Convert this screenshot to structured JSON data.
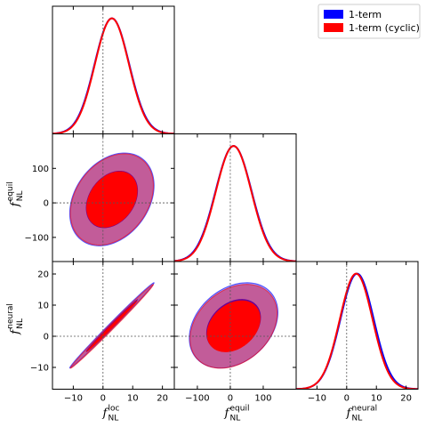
{
  "chart_data": {
    "type": "triangle",
    "parameters": [
      {
        "id": "loc",
        "symbol": "f",
        "sub": "NL",
        "sup": "loc",
        "fiducial": 0,
        "range": [
          -17,
          24
        ],
        "ticks": [
          -10,
          0,
          10,
          20
        ]
      },
      {
        "id": "equil",
        "symbol": "f",
        "sub": "NL",
        "sup": "equil",
        "fiducial": 0,
        "range": [
          -170,
          200
        ],
        "ticks": [
          -100,
          0,
          100
        ]
      },
      {
        "id": "neural",
        "symbol": "f",
        "sub": "NL",
        "sup": "neural",
        "fiducial": 0,
        "range": [
          -17,
          24
        ],
        "ticks": [
          -10,
          0,
          10,
          20
        ]
      }
    ],
    "series": [
      {
        "name": "1-term",
        "color": "#0000ff",
        "marginals": [
          {
            "mean": 3,
            "sigma": 5.8
          },
          {
            "mean": 10,
            "sigma": 55
          },
          {
            "mean": 3.5,
            "sigma": 5.6
          }
        ],
        "contours": [
          {
            "x": "loc",
            "y": "equil",
            "center": [
              3,
              10
            ],
            "sigma": [
              5.8,
              55
            ],
            "rho": 0.3
          },
          {
            "x": "loc",
            "y": "neural",
            "center": [
              3,
              3.5
            ],
            "sigma": [
              5.8,
              5.6
            ],
            "rho": 0.996
          },
          {
            "x": "equil",
            "y": "neural",
            "center": [
              10,
              3.5
            ],
            "sigma": [
              55,
              5.6
            ],
            "rho": 0.3
          }
        ]
      },
      {
        "name": "1-term (cyclic)",
        "color": "#ff0000",
        "marginals": [
          {
            "mean": 3,
            "sigma": 5.7
          },
          {
            "mean": 10,
            "sigma": 54
          },
          {
            "mean": 3.2,
            "sigma": 5.5
          }
        ],
        "contours": [
          {
            "x": "loc",
            "y": "equil",
            "center": [
              3,
              10
            ],
            "sigma": [
              5.7,
              54
            ],
            "rho": 0.3
          },
          {
            "x": "loc",
            "y": "neural",
            "center": [
              3,
              3.2
            ],
            "sigma": [
              5.7,
              5.5
            ],
            "rho": 0.996
          },
          {
            "x": "equil",
            "y": "neural",
            "center": [
              10,
              3.2
            ],
            "sigma": [
              54,
              5.5
            ],
            "rho": 0.3
          }
        ]
      }
    ],
    "legend": {
      "position": "top-right",
      "entries": [
        "1-term",
        "1-term (cyclic)"
      ]
    },
    "credible_levels": [
      0.68,
      0.95
    ]
  }
}
